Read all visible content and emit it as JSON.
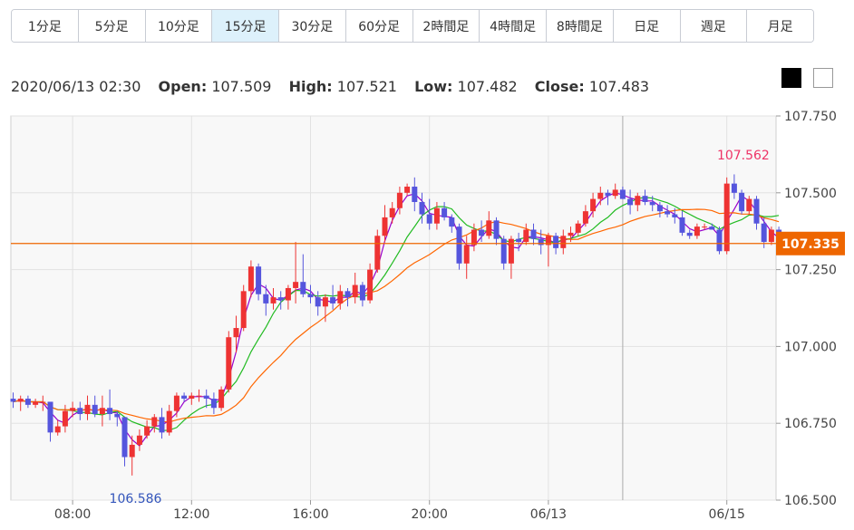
{
  "tabs": [
    {
      "label": "1分足"
    },
    {
      "label": "5分足"
    },
    {
      "label": "10分足"
    },
    {
      "label": "15分足",
      "active": true
    },
    {
      "label": "30分足"
    },
    {
      "label": "60分足"
    },
    {
      "label": "2時間足"
    },
    {
      "label": "4時間足"
    },
    {
      "label": "8時間足"
    },
    {
      "label": "日足"
    },
    {
      "label": "週足"
    },
    {
      "label": "月足"
    }
  ],
  "ohlc_info": {
    "datetime": "2020/06/13 02:30",
    "open_label": "Open:",
    "open": "107.509",
    "high_label": "High:",
    "high": "107.521",
    "low_label": "Low:",
    "low": "107.482",
    "close_label": "Close:",
    "close": "107.483"
  },
  "chart_data": {
    "type": "candlestick",
    "y_ticks": [
      "107.750",
      "107.500",
      "107.250",
      "107.000",
      "106.750",
      "106.500"
    ],
    "ylim": [
      106.5,
      107.75
    ],
    "x_tick_labels": [
      "08:00",
      "12:00",
      "16:00",
      "20:00",
      "06/13",
      "06/15"
    ],
    "x_tick_index": [
      8,
      24,
      40,
      56,
      72,
      96
    ],
    "current_price": "107.335",
    "current_price_value": 107.335,
    "max_annotation": {
      "label": "107.562",
      "value": 107.562,
      "index": 97
    },
    "min_annotation": {
      "label": "106.586",
      "value": 106.586,
      "index": 15
    },
    "crosshair_index": 82,
    "up_color": "#ee3333",
    "down_color": "#5555dd",
    "ma_colors": [
      "#9900cc",
      "#22bb22",
      "#ff6600"
    ],
    "candles": [
      [
        106.83,
        106.85,
        106.8,
        106.82
      ],
      [
        106.82,
        106.84,
        106.79,
        106.83
      ],
      [
        106.83,
        106.84,
        106.8,
        106.81
      ],
      [
        106.81,
        106.83,
        106.8,
        106.82
      ],
      [
        106.82,
        106.84,
        106.79,
        106.82
      ],
      [
        106.82,
        106.82,
        106.69,
        106.72
      ],
      [
        106.72,
        106.76,
        106.71,
        106.74
      ],
      [
        106.74,
        106.81,
        106.72,
        106.79
      ],
      [
        106.79,
        106.82,
        106.77,
        106.8
      ],
      [
        106.8,
        106.82,
        106.76,
        106.78
      ],
      [
        106.78,
        106.84,
        106.76,
        106.81
      ],
      [
        106.81,
        106.84,
        106.77,
        106.78
      ],
      [
        106.78,
        106.84,
        106.74,
        106.8
      ],
      [
        106.8,
        106.86,
        106.76,
        106.78
      ],
      [
        106.78,
        106.79,
        106.74,
        106.77
      ],
      [
        106.77,
        106.77,
        106.61,
        106.64
      ],
      [
        106.64,
        106.71,
        106.58,
        106.68
      ],
      [
        106.68,
        106.73,
        106.66,
        106.71
      ],
      [
        106.71,
        106.76,
        106.7,
        106.74
      ],
      [
        106.74,
        106.78,
        106.72,
        106.77
      ],
      [
        106.77,
        106.8,
        106.7,
        106.72
      ],
      [
        106.72,
        106.81,
        106.71,
        106.79
      ],
      [
        106.79,
        106.85,
        106.77,
        106.84
      ],
      [
        106.84,
        106.85,
        106.82,
        106.83
      ],
      [
        106.83,
        106.85,
        106.81,
        106.84
      ],
      [
        106.84,
        106.86,
        106.82,
        106.84
      ],
      [
        106.84,
        106.86,
        106.8,
        106.83
      ],
      [
        106.83,
        106.85,
        106.78,
        106.8
      ],
      [
        106.8,
        106.87,
        106.79,
        106.86
      ],
      [
        106.86,
        107.05,
        106.85,
        107.03
      ],
      [
        107.03,
        107.1,
        106.98,
        107.06
      ],
      [
        107.06,
        107.2,
        107.05,
        107.18
      ],
      [
        107.18,
        107.28,
        107.16,
        107.26
      ],
      [
        107.26,
        107.27,
        107.15,
        107.17
      ],
      [
        107.17,
        107.2,
        107.1,
        107.14
      ],
      [
        107.14,
        107.19,
        107.12,
        107.16
      ],
      [
        107.16,
        107.18,
        107.12,
        107.15
      ],
      [
        107.15,
        107.2,
        107.12,
        107.19
      ],
      [
        107.19,
        107.34,
        107.14,
        107.21
      ],
      [
        107.21,
        107.3,
        107.16,
        107.17
      ],
      [
        107.17,
        107.2,
        107.14,
        107.16
      ],
      [
        107.16,
        107.18,
        107.1,
        107.13
      ],
      [
        107.13,
        107.17,
        107.08,
        107.16
      ],
      [
        107.16,
        107.2,
        107.12,
        107.14
      ],
      [
        107.14,
        107.2,
        107.12,
        107.18
      ],
      [
        107.18,
        107.19,
        107.13,
        107.16
      ],
      [
        107.16,
        107.24,
        107.14,
        107.2
      ],
      [
        107.2,
        107.21,
        107.13,
        107.15
      ],
      [
        107.15,
        107.27,
        107.14,
        107.25
      ],
      [
        107.25,
        107.38,
        107.24,
        107.36
      ],
      [
        107.36,
        107.46,
        107.34,
        107.42
      ],
      [
        107.42,
        107.47,
        107.4,
        107.45
      ],
      [
        107.45,
        107.52,
        107.43,
        107.5
      ],
      [
        107.5,
        107.53,
        107.49,
        107.52
      ],
      [
        107.52,
        107.55,
        107.44,
        107.47
      ],
      [
        107.47,
        107.5,
        107.4,
        107.43
      ],
      [
        107.43,
        107.48,
        107.38,
        107.4
      ],
      [
        107.4,
        107.47,
        107.38,
        107.45
      ],
      [
        107.45,
        107.47,
        107.41,
        107.42
      ],
      [
        107.42,
        107.43,
        107.37,
        107.39
      ],
      [
        107.39,
        107.4,
        107.25,
        107.27
      ],
      [
        107.27,
        107.36,
        107.22,
        107.33
      ],
      [
        107.33,
        107.4,
        107.31,
        107.38
      ],
      [
        107.38,
        107.41,
        107.34,
        107.36
      ],
      [
        107.36,
        107.44,
        107.35,
        107.41
      ],
      [
        107.41,
        107.42,
        107.33,
        107.35
      ],
      [
        107.35,
        107.36,
        107.25,
        107.27
      ],
      [
        107.27,
        107.36,
        107.22,
        107.35
      ],
      [
        107.35,
        107.37,
        107.31,
        107.34
      ],
      [
        107.34,
        107.4,
        107.33,
        107.38
      ],
      [
        107.38,
        107.4,
        107.33,
        107.35
      ],
      [
        107.35,
        107.38,
        107.3,
        107.33
      ],
      [
        107.33,
        107.37,
        107.26,
        107.36
      ],
      [
        107.36,
        107.37,
        107.3,
        107.32
      ],
      [
        107.32,
        107.38,
        107.3,
        107.36
      ],
      [
        107.36,
        107.39,
        107.34,
        107.37
      ],
      [
        107.37,
        107.41,
        107.36,
        107.4
      ],
      [
        107.4,
        107.46,
        107.39,
        107.44
      ],
      [
        107.44,
        107.5,
        107.42,
        107.48
      ],
      [
        107.48,
        107.52,
        107.46,
        107.5
      ],
      [
        107.5,
        107.51,
        107.46,
        107.49
      ],
      [
        107.49,
        107.53,
        107.48,
        107.51
      ],
      [
        107.51,
        107.52,
        107.48,
        107.48
      ],
      [
        107.48,
        107.51,
        107.43,
        107.46
      ],
      [
        107.46,
        107.5,
        107.44,
        107.49
      ],
      [
        107.49,
        107.51,
        107.46,
        107.47
      ],
      [
        107.47,
        107.49,
        107.44,
        107.46
      ],
      [
        107.46,
        107.47,
        107.42,
        107.44
      ],
      [
        107.44,
        107.46,
        107.42,
        107.43
      ],
      [
        107.43,
        107.45,
        107.4,
        107.42
      ],
      [
        107.42,
        107.44,
        107.36,
        107.37
      ],
      [
        107.37,
        107.38,
        107.35,
        107.36
      ],
      [
        107.36,
        107.4,
        107.35,
        107.39
      ],
      [
        107.39,
        107.4,
        107.38,
        107.39
      ],
      [
        107.39,
        107.4,
        107.38,
        107.38
      ],
      [
        107.38,
        107.39,
        107.3,
        107.31
      ],
      [
        107.31,
        107.55,
        107.3,
        107.53
      ],
      [
        107.53,
        107.56,
        107.48,
        107.5
      ],
      [
        107.5,
        107.51,
        107.43,
        107.44
      ],
      [
        107.44,
        107.49,
        107.43,
        107.48
      ],
      [
        107.48,
        107.49,
        107.38,
        107.4
      ],
      [
        107.4,
        107.42,
        107.32,
        107.34
      ],
      [
        107.34,
        107.39,
        107.33,
        107.38
      ],
      [
        107.38,
        107.39,
        107.33,
        107.34
      ]
    ]
  }
}
